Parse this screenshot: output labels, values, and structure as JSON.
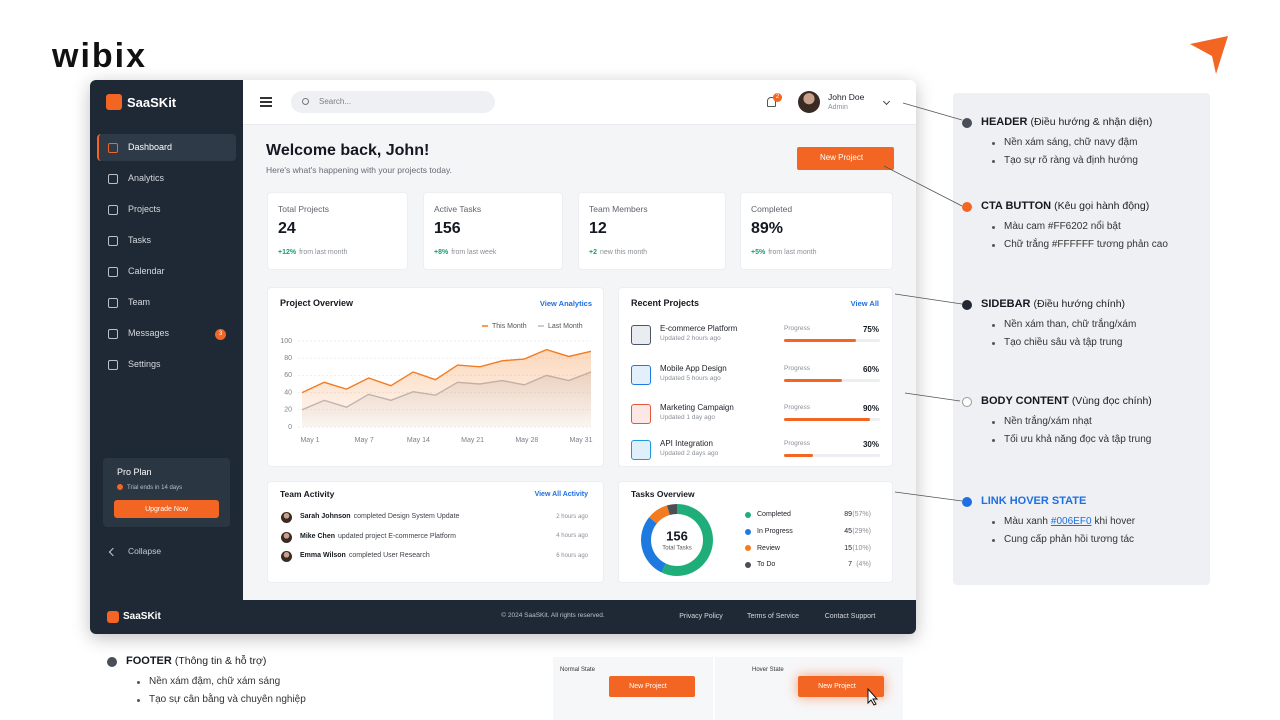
{
  "logo": "wibix",
  "sidebar": {
    "brand": "SaaSKit",
    "nav": [
      "Dashboard",
      "Analytics",
      "Projects",
      "Tasks",
      "Calendar",
      "Team",
      "Messages",
      "Settings"
    ],
    "messages_badge": "3",
    "plan": {
      "title": "Pro Plan",
      "note": "Trial ends in 14 days",
      "button": "Upgrade Now"
    },
    "collapse": "Collapse"
  },
  "header": {
    "search": "Search...",
    "notifications": "2",
    "user": "John Doe",
    "role": "Admin"
  },
  "welcome": {
    "title": "Welcome back, John!",
    "subtitle": "Here's what's happening with your projects today.",
    "cta": "New Project"
  },
  "stats": [
    {
      "label": "Total Projects",
      "value": "24",
      "change": "+12%",
      "note": "from last month"
    },
    {
      "label": "Active Tasks",
      "value": "156",
      "change": "+8%",
      "note": "from last week"
    },
    {
      "label": "Team Members",
      "value": "12",
      "change": "+2",
      "note": "new this month"
    },
    {
      "label": "Completed",
      "value": "89%",
      "change": "+5%",
      "note": "from last month"
    }
  ],
  "overview": {
    "title": "Project Overview",
    "link": "View Analytics",
    "chart_data": {
      "type": "line",
      "x_labels": [
        "May 1",
        "May 7",
        "May 14",
        "May 21",
        "May 28",
        "May 31"
      ],
      "ylim": [
        0,
        100
      ],
      "yticks": [
        0,
        20,
        40,
        60,
        80,
        100
      ],
      "grid": true,
      "series": [
        {
          "name": "This Month",
          "color": "#f47b20",
          "values": [
            40,
            52,
            44,
            57,
            48,
            64,
            55,
            72,
            70,
            77,
            79,
            90,
            82,
            88
          ]
        },
        {
          "name": "Last Month",
          "color": "#b8bcc6",
          "values": [
            20,
            31,
            23,
            38,
            31,
            41,
            37,
            52,
            50,
            54,
            49,
            60,
            54,
            64
          ]
        }
      ]
    }
  },
  "recent": {
    "title": "Recent Projects",
    "link": "View All",
    "progress_label": "Progress",
    "items": [
      {
        "name": "E-commerce Platform",
        "updated": "Updated 2 hours ago",
        "progress": 75,
        "progress_text": "75%"
      },
      {
        "name": "Mobile App Design",
        "updated": "Updated 5 hours ago",
        "progress": 60,
        "progress_text": "60%"
      },
      {
        "name": "Marketing Campaign",
        "updated": "Updated 1 day ago",
        "progress": 90,
        "progress_text": "90%"
      },
      {
        "name": "API Integration",
        "updated": "Updated 2 days ago",
        "progress": 30,
        "progress_text": "30%"
      }
    ]
  },
  "activity": {
    "title": "Team Activity",
    "link": "View All Activity",
    "items": [
      {
        "user": "Sarah Johnson",
        "text": "completed Design System Update",
        "time": "2 hours ago"
      },
      {
        "user": "Mike Chen",
        "text": "updated project E-commerce Platform",
        "time": "4 hours ago"
      },
      {
        "user": "Emma Wilson",
        "text": "completed User Research",
        "time": "6 hours ago"
      }
    ]
  },
  "tasks": {
    "title": "Tasks Overview",
    "total": "156",
    "total_label": "Total Tasks",
    "items": [
      {
        "name": "Completed",
        "count": 89,
        "share": "(57%)",
        "color": "#1fae7a"
      },
      {
        "name": "In Progress",
        "count": 45,
        "share": "(29%)",
        "color": "#1f7ae0"
      },
      {
        "name": "Review",
        "count": 15,
        "share": "(10%)",
        "color": "#f47b20"
      },
      {
        "name": "To Do",
        "count": 7,
        "share": "(4%)",
        "color": "#4a4f57"
      }
    ]
  },
  "footer": {
    "brand": "SaaSKit",
    "copyright": "© 2024 SaaSKit. All rights reserved.",
    "links": [
      "Privacy Policy",
      "Terms of Service",
      "Contact Support"
    ]
  },
  "annotations": [
    {
      "title": "HEADER",
      "subtitle": "(Điều hướng & nhận diện)",
      "bullets": [
        "Nền xám sáng, chữ navy đậm",
        "Tạo sự rõ ràng và định hướng"
      ]
    },
    {
      "title": "CTA BUTTON",
      "subtitle": "(Kêu gọi hành động)",
      "bullets": [
        "Màu cam #FF6202 nổi bật",
        "Chữ trắng #FFFFFF tương phản cao"
      ]
    },
    {
      "title": "SIDEBAR",
      "subtitle": "(Điều hướng chính)",
      "bullets": [
        "Nền xám than, chữ trắng/xám",
        "Tạo chiều sâu và tập trung"
      ]
    },
    {
      "title": "BODY CONTENT",
      "subtitle": "(Vùng đọc chính)",
      "bullets": [
        "Nền trắng/xám nhạt",
        "Tối ưu khả năng đọc và tập trung"
      ]
    },
    {
      "title": "LINK HOVER STATE",
      "bullets": [
        {
          "text": "Màu xanh",
          "link": "#006EF0",
          "after": "khi hover"
        },
        "Cung cấp phản hồi tương tác"
      ]
    }
  ],
  "footer_annotation": {
    "title": "FOOTER",
    "subtitle": "(Thông tin & hỗ trợ)",
    "bullets": [
      "Nền xám đậm, chữ xám sáng",
      "Tạo sự cân bằng và chuyên nghiệp"
    ]
  },
  "states": {
    "normal": "Normal State",
    "hover": "Hover State",
    "button": "New Project"
  }
}
